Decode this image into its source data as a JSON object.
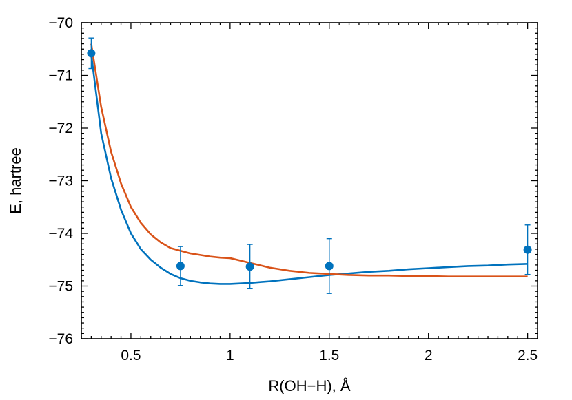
{
  "chart_data": {
    "type": "line",
    "xlabel": "R(OH−H), Å",
    "ylabel": "E, hartree",
    "xlim": [
      0.25,
      2.55
    ],
    "ylim": [
      -76,
      -70
    ],
    "x_ticks": [
      0.5,
      1,
      1.5,
      2,
      2.5
    ],
    "x_tick_labels": [
      "0.5",
      "1",
      "1.5",
      "2",
      "2.5"
    ],
    "y_ticks": [
      -76,
      -75,
      -74,
      -73,
      -72,
      -71,
      -70
    ],
    "y_tick_labels": [
      "−76",
      "−75",
      "−74",
      "−73",
      "−72",
      "−71",
      "−70"
    ],
    "grid": false,
    "legend": "none",
    "series": [
      {
        "kind": "line",
        "color": "#0072bd",
        "x": [
          0.3,
          0.35,
          0.4,
          0.45,
          0.5,
          0.55,
          0.6,
          0.65,
          0.7,
          0.75,
          0.8,
          0.85,
          0.9,
          0.95,
          1.0,
          1.1,
          1.2,
          1.3,
          1.4,
          1.5,
          1.6,
          1.7,
          1.8,
          1.9,
          2.0,
          2.1,
          2.2,
          2.3,
          2.4,
          2.5
        ],
        "y": [
          -70.6,
          -72.1,
          -72.95,
          -73.55,
          -74.0,
          -74.3,
          -74.5,
          -74.65,
          -74.77,
          -74.85,
          -74.9,
          -74.93,
          -74.95,
          -74.96,
          -74.96,
          -74.94,
          -74.91,
          -74.87,
          -74.83,
          -74.79,
          -74.76,
          -74.73,
          -74.71,
          -74.68,
          -74.66,
          -74.64,
          -74.62,
          -74.61,
          -74.59,
          -74.58
        ]
      },
      {
        "kind": "line",
        "color": "#d95319",
        "x": [
          0.3,
          0.35,
          0.4,
          0.45,
          0.5,
          0.55,
          0.6,
          0.65,
          0.7,
          0.75,
          0.8,
          0.85,
          0.9,
          0.95,
          1.0,
          1.1,
          1.2,
          1.3,
          1.4,
          1.5,
          1.6,
          1.7,
          1.8,
          1.9,
          2.0,
          2.1,
          2.2,
          2.3,
          2.4,
          2.5
        ],
        "y": [
          -70.4,
          -71.6,
          -72.45,
          -73.05,
          -73.5,
          -73.8,
          -74.02,
          -74.17,
          -74.28,
          -74.33,
          -74.38,
          -74.41,
          -74.44,
          -74.46,
          -74.47,
          -74.56,
          -74.65,
          -74.71,
          -74.75,
          -74.77,
          -74.79,
          -74.8,
          -74.8,
          -74.81,
          -74.81,
          -74.82,
          -74.82,
          -74.82,
          -74.82,
          -74.82
        ]
      },
      {
        "kind": "errorbar",
        "color": "#0072bd",
        "x": [
          0.3,
          0.75,
          1.1,
          1.5,
          2.5
        ],
        "y": [
          -70.58,
          -74.62,
          -74.63,
          -74.62,
          -74.31
        ],
        "err": [
          0.29,
          0.37,
          0.42,
          0.52,
          0.47
        ]
      }
    ]
  }
}
